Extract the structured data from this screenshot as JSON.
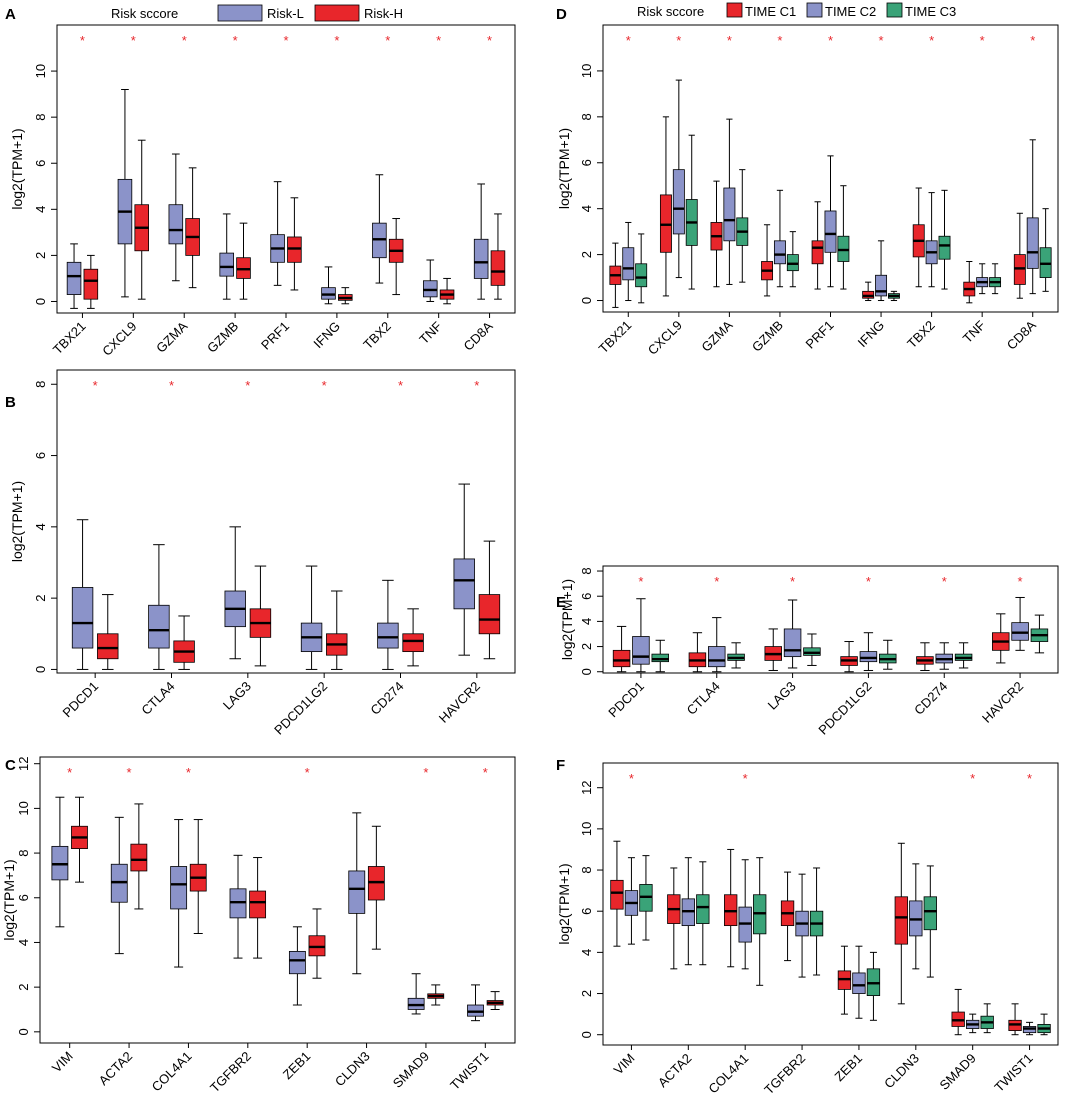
{
  "colors": {
    "risk_low": "#8b93c9",
    "risk_high": "#e8262b",
    "time_c1": "#e8262b",
    "time_c2": "#8b93c9",
    "time_c3": "#3aa378",
    "star": "#e8262b"
  },
  "legend_left": {
    "title": "Risk sccore",
    "labels": [
      "Risk-L",
      "Risk-H"
    ]
  },
  "legend_right": {
    "title": "Risk sccore",
    "labels": [
      "TIME C1",
      "TIME C2",
      "TIME C3"
    ]
  },
  "chart_data": [
    {
      "panel": "A",
      "type": "boxplot",
      "ylabel": "log2(TPM+1)",
      "ylim": [
        -0.5,
        12
      ],
      "yticks": [
        0,
        2,
        4,
        6,
        8,
        10
      ],
      "categories": [
        "TBX21",
        "CXCL9",
        "GZMA",
        "GZMB",
        "PRF1",
        "IFNG",
        "TBX2",
        "TNF",
        "CD8A"
      ],
      "significance": [
        "*",
        "*",
        "*",
        "*",
        "*",
        "*",
        "*",
        "*",
        "*"
      ],
      "series": [
        {
          "name": "Risk-L",
          "stats": [
            [
              -0.3,
              0.3,
              1.1,
              1.7,
              2.5
            ],
            [
              0.2,
              2.5,
              3.9,
              5.3,
              9.2
            ],
            [
              0.9,
              2.5,
              3.1,
              4.2,
              6.4
            ],
            [
              0.1,
              1.1,
              1.5,
              2.1,
              3.8
            ],
            [
              0.7,
              1.7,
              2.3,
              2.9,
              5.2
            ],
            [
              -0.1,
              0.1,
              0.3,
              0.6,
              1.5
            ],
            [
              0.8,
              1.9,
              2.7,
              3.4,
              5.5
            ],
            [
              0.0,
              0.2,
              0.5,
              0.9,
              1.8
            ],
            [
              0.1,
              1.0,
              1.7,
              2.7,
              5.1
            ]
          ]
        },
        {
          "name": "Risk-H",
          "stats": [
            [
              -0.3,
              0.1,
              0.9,
              1.4,
              2.0
            ],
            [
              0.1,
              2.2,
              3.2,
              4.2,
              7.0
            ],
            [
              0.6,
              2.0,
              2.8,
              3.6,
              5.8
            ],
            [
              0.1,
              1.0,
              1.4,
              1.9,
              3.4
            ],
            [
              0.5,
              1.7,
              2.3,
              2.8,
              4.5
            ],
            [
              -0.1,
              0.05,
              0.15,
              0.3,
              0.6
            ],
            [
              0.3,
              1.7,
              2.2,
              2.7,
              3.6
            ],
            [
              -0.1,
              0.1,
              0.3,
              0.5,
              1.0
            ],
            [
              0.1,
              0.7,
              1.3,
              2.2,
              3.8
            ]
          ]
        }
      ]
    },
    {
      "panel": "B",
      "type": "boxplot",
      "ylabel": "log2(TPM+1)",
      "ylim": [
        -0.1,
        8.4
      ],
      "yticks": [
        0,
        2,
        4,
        6,
        8
      ],
      "categories": [
        "PDCD1",
        "CTLA4",
        "LAG3",
        "PDCD1LG2",
        "CD274",
        "HAVCR2"
      ],
      "significance": [
        "*",
        "*",
        "*",
        "*",
        "*",
        "*"
      ],
      "series": [
        {
          "name": "Risk-L",
          "stats": [
            [
              0.0,
              0.6,
              1.3,
              2.3,
              4.2
            ],
            [
              0.0,
              0.6,
              1.1,
              1.8,
              3.5
            ],
            [
              0.3,
              1.2,
              1.7,
              2.2,
              4.0
            ],
            [
              0.0,
              0.5,
              0.9,
              1.3,
              2.9
            ],
            [
              0.0,
              0.6,
              0.9,
              1.3,
              2.5
            ],
            [
              0.4,
              1.7,
              2.5,
              3.1,
              5.2
            ]
          ]
        },
        {
          "name": "Risk-H",
          "stats": [
            [
              0.0,
              0.3,
              0.6,
              1.0,
              2.1
            ],
            [
              0.0,
              0.2,
              0.5,
              0.8,
              1.5
            ],
            [
              0.1,
              0.9,
              1.3,
              1.7,
              2.9
            ],
            [
              0.0,
              0.4,
              0.7,
              1.0,
              2.2
            ],
            [
              0.1,
              0.5,
              0.8,
              1.0,
              1.7
            ],
            [
              0.3,
              1.0,
              1.4,
              2.1,
              3.6
            ]
          ]
        }
      ]
    },
    {
      "panel": "C",
      "type": "boxplot",
      "ylabel": "log2(TPM+1)",
      "ylim": [
        -0.5,
        12.3
      ],
      "yticks": [
        0,
        2,
        4,
        6,
        8,
        10,
        12
      ],
      "categories": [
        "VIM",
        "ACTA2",
        "COL4A1",
        "TGFBR2",
        "ZEB1",
        "CLDN3",
        "SMAD9",
        "TWIST1"
      ],
      "significance": [
        "*",
        "*",
        "*",
        "",
        "*",
        "",
        "*",
        "*"
      ],
      "series": [
        {
          "name": "Risk-L",
          "stats": [
            [
              4.7,
              6.8,
              7.5,
              8.3,
              10.5
            ],
            [
              3.5,
              5.8,
              6.7,
              7.5,
              9.6
            ],
            [
              2.9,
              5.5,
              6.6,
              7.4,
              9.5
            ],
            [
              3.3,
              5.1,
              5.8,
              6.4,
              7.9
            ],
            [
              1.2,
              2.6,
              3.2,
              3.6,
              4.7
            ],
            [
              2.6,
              5.3,
              6.4,
              7.2,
              9.8
            ],
            [
              0.8,
              1.0,
              1.2,
              1.5,
              2.6
            ],
            [
              0.5,
              0.7,
              0.9,
              1.2,
              2.1
            ]
          ]
        },
        {
          "name": "Risk-H",
          "stats": [
            [
              6.7,
              8.2,
              8.7,
              9.2,
              10.5
            ],
            [
              5.5,
              7.2,
              7.7,
              8.4,
              10.2
            ],
            [
              4.4,
              6.3,
              6.9,
              7.5,
              9.5
            ],
            [
              3.3,
              5.1,
              5.8,
              6.3,
              7.8
            ],
            [
              2.4,
              3.4,
              3.8,
              4.3,
              5.5
            ],
            [
              3.7,
              5.9,
              6.7,
              7.4,
              9.2
            ],
            [
              1.2,
              1.5,
              1.6,
              1.7,
              2.1
            ],
            [
              1.0,
              1.2,
              1.3,
              1.4,
              1.8
            ]
          ]
        }
      ]
    },
    {
      "panel": "D",
      "type": "boxplot",
      "ylabel": "log2(TPM+1)",
      "ylim": [
        -0.5,
        12
      ],
      "yticks": [
        0,
        2,
        4,
        6,
        8,
        10
      ],
      "categories": [
        "TBX21",
        "CXCL9",
        "GZMA",
        "GZMB",
        "PRF1",
        "IFNG",
        "TBX2",
        "TNF",
        "CD8A"
      ],
      "significance": [
        "*",
        "*",
        "*",
        "*",
        "*",
        "*",
        "*",
        "*",
        "*"
      ],
      "series": [
        {
          "name": "TIME C1",
          "stats": [
            [
              -0.3,
              0.7,
              1.1,
              1.5,
              2.5
            ],
            [
              0.2,
              2.1,
              3.3,
              4.6,
              8.0
            ],
            [
              0.6,
              2.2,
              2.8,
              3.4,
              5.2
            ],
            [
              0.2,
              0.9,
              1.3,
              1.7,
              3.3
            ],
            [
              0.5,
              1.6,
              2.3,
              2.6,
              4.3
            ],
            [
              0.0,
              0.1,
              0.2,
              0.4,
              0.8
            ],
            [
              0.6,
              1.9,
              2.6,
              3.3,
              4.9
            ],
            [
              -0.1,
              0.2,
              0.5,
              0.8,
              1.7
            ],
            [
              0.1,
              0.7,
              1.4,
              2.0,
              3.8
            ]
          ]
        },
        {
          "name": "TIME C2",
          "stats": [
            [
              0.0,
              0.9,
              1.4,
              2.3,
              3.4
            ],
            [
              1.0,
              2.9,
              4.0,
              5.7,
              9.6
            ],
            [
              0.7,
              2.6,
              3.5,
              4.9,
              7.9
            ],
            [
              0.6,
              1.6,
              2.0,
              2.6,
              4.8
            ],
            [
              0.6,
              2.1,
              2.9,
              3.9,
              6.3
            ],
            [
              0.0,
              0.2,
              0.4,
              1.1,
              2.6
            ],
            [
              0.6,
              1.6,
              2.1,
              2.6,
              4.7
            ],
            [
              0.3,
              0.6,
              0.8,
              1.0,
              1.6
            ],
            [
              0.3,
              1.4,
              2.1,
              3.6,
              7.0
            ]
          ]
        },
        {
          "name": "TIME C3",
          "stats": [
            [
              -0.1,
              0.6,
              1.0,
              1.6,
              2.9
            ],
            [
              0.5,
              2.4,
              3.4,
              4.4,
              7.2
            ],
            [
              0.8,
              2.4,
              3.0,
              3.6,
              5.7
            ],
            [
              0.6,
              1.3,
              1.6,
              2.0,
              3.0
            ],
            [
              0.5,
              1.7,
              2.2,
              2.8,
              5.0
            ],
            [
              0.0,
              0.1,
              0.2,
              0.3,
              0.4
            ],
            [
              0.5,
              1.8,
              2.4,
              2.8,
              4.8
            ],
            [
              0.3,
              0.6,
              0.8,
              1.0,
              1.6
            ],
            [
              0.4,
              1.0,
              1.6,
              2.3,
              4.0
            ]
          ]
        }
      ]
    },
    {
      "panel": "E",
      "type": "boxplot",
      "ylabel": "log2(TPM+1)",
      "ylim": [
        -0.1,
        8.4
      ],
      "yticks": [
        0,
        2,
        4,
        6,
        8
      ],
      "categories": [
        "PDCD1",
        "CTLA4",
        "LAG3",
        "PDCD1LG2",
        "CD274",
        "HAVCR2"
      ],
      "significance": [
        "*",
        "*",
        "*",
        "*",
        "*",
        "*"
      ],
      "series": [
        {
          "name": "TIME C1",
          "stats": [
            [
              0.0,
              0.4,
              0.9,
              1.7,
              3.6
            ],
            [
              0.0,
              0.4,
              0.9,
              1.5,
              3.1
            ],
            [
              0.1,
              0.9,
              1.4,
              2.0,
              3.4
            ],
            [
              0.0,
              0.5,
              0.9,
              1.2,
              2.4
            ],
            [
              0.1,
              0.6,
              0.9,
              1.2,
              2.3
            ],
            [
              0.7,
              1.7,
              2.4,
              3.1,
              4.6
            ]
          ]
        },
        {
          "name": "TIME C2",
          "stats": [
            [
              0.0,
              0.6,
              1.2,
              2.8,
              5.8
            ],
            [
              0.0,
              0.4,
              0.9,
              2.0,
              4.3
            ],
            [
              0.3,
              1.2,
              1.7,
              3.4,
              5.7
            ],
            [
              0.1,
              0.8,
              1.1,
              1.6,
              3.1
            ],
            [
              0.2,
              0.7,
              1.0,
              1.4,
              2.3
            ],
            [
              1.7,
              2.5,
              3.1,
              3.9,
              5.9
            ]
          ]
        },
        {
          "name": "TIME C3",
          "stats": [
            [
              0.0,
              0.8,
              1.0,
              1.4,
              2.5
            ],
            [
              0.3,
              0.9,
              1.1,
              1.4,
              2.3
            ],
            [
              0.5,
              1.3,
              1.5,
              1.9,
              3.0
            ],
            [
              0.2,
              0.7,
              1.0,
              1.4,
              2.5
            ],
            [
              0.3,
              0.9,
              1.1,
              1.4,
              2.3
            ],
            [
              1.5,
              2.4,
              2.9,
              3.4,
              4.5
            ]
          ]
        }
      ]
    },
    {
      "panel": "F",
      "type": "boxplot",
      "ylabel": "log2(TPM+1)",
      "ylim": [
        -0.5,
        13.2
      ],
      "yticks": [
        0,
        2,
        4,
        6,
        8,
        10,
        12
      ],
      "categories": [
        "VIM",
        "ACTA2",
        "COL4A1",
        "TGFBR2",
        "ZEB1",
        "CLDN3",
        "SMAD9",
        "TWIST1"
      ],
      "significance": [
        "*",
        "",
        "*",
        "",
        "",
        "",
        "*",
        "*"
      ],
      "series": [
        {
          "name": "TIME C1",
          "stats": [
            [
              4.3,
              6.1,
              6.9,
              7.5,
              9.4
            ],
            [
              3.2,
              5.4,
              6.1,
              6.8,
              8.1
            ],
            [
              3.3,
              5.3,
              6.0,
              6.8,
              9.0
            ],
            [
              3.6,
              5.3,
              5.9,
              6.5,
              7.9
            ],
            [
              1.0,
              2.2,
              2.7,
              3.1,
              4.3
            ],
            [
              1.5,
              4.4,
              5.7,
              6.7,
              9.3
            ],
            [
              0.0,
              0.4,
              0.7,
              1.1,
              2.2
            ],
            [
              0.0,
              0.2,
              0.5,
              0.7,
              1.5
            ]
          ]
        },
        {
          "name": "TIME C2",
          "stats": [
            [
              4.4,
              5.8,
              6.4,
              7.0,
              8.6
            ],
            [
              3.4,
              5.3,
              6.0,
              6.6,
              8.6
            ],
            [
              3.2,
              4.5,
              5.4,
              6.2,
              8.5
            ],
            [
              2.8,
              4.8,
              5.4,
              6.0,
              7.8
            ],
            [
              0.8,
              2.0,
              2.4,
              3.0,
              4.3
            ],
            [
              3.2,
              4.8,
              5.6,
              6.5,
              8.3
            ],
            [
              0.1,
              0.3,
              0.5,
              0.7,
              1.0
            ],
            [
              0.0,
              0.1,
              0.3,
              0.4,
              0.6
            ]
          ]
        },
        {
          "name": "TIME C3",
          "stats": [
            [
              4.6,
              6.0,
              6.7,
              7.3,
              8.7
            ],
            [
              3.4,
              5.4,
              6.2,
              6.8,
              8.4
            ],
            [
              2.4,
              4.9,
              5.9,
              6.8,
              8.6
            ],
            [
              2.9,
              4.8,
              5.4,
              6.0,
              8.1
            ],
            [
              0.7,
              1.9,
              2.5,
              3.2,
              4.0
            ],
            [
              2.8,
              5.1,
              6.0,
              6.7,
              8.2
            ],
            [
              0.1,
              0.3,
              0.6,
              0.9,
              1.5
            ],
            [
              0.0,
              0.1,
              0.3,
              0.5,
              1.0
            ]
          ]
        }
      ]
    }
  ]
}
